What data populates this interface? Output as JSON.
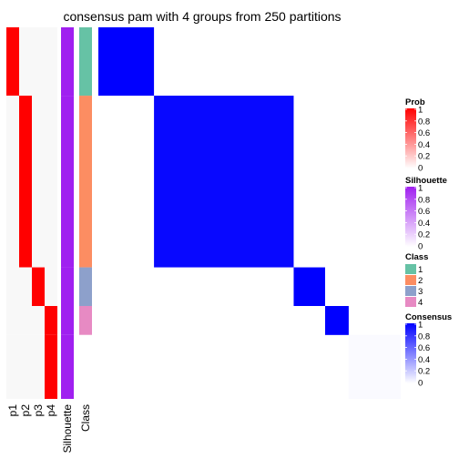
{
  "chart_data": {
    "type": "heatmap",
    "title": "consensus pam with 4 groups from 250 partitions",
    "columns": [
      "p1",
      "p2",
      "p3",
      "p4",
      "Silhouette",
      "Class"
    ],
    "groups": [
      {
        "class": "1",
        "fraction": 0.184,
        "prob": [
          1,
          0,
          0,
          0
        ],
        "silhouette": 1
      },
      {
        "class": "2",
        "fraction": 0.462,
        "prob": [
          0,
          1,
          0,
          0
        ],
        "silhouette": 1
      },
      {
        "class": "3",
        "fraction": 0.104,
        "prob": [
          0,
          0,
          1,
          0
        ],
        "silhouette": 1
      },
      {
        "class": "4",
        "fraction": 0.078,
        "prob": [
          0,
          0,
          0,
          1
        ],
        "silhouette": 1
      },
      {
        "class": "",
        "fraction": 0.172,
        "prob": [
          0,
          0,
          0,
          1
        ],
        "silhouette": 1
      }
    ],
    "consensus_blocks": [
      {
        "rows": [
          0,
          0
        ],
        "value": 1
      },
      {
        "rows": [
          1,
          1
        ],
        "value": 0.97
      },
      {
        "rows": [
          2,
          2
        ],
        "value": 1
      },
      {
        "rows": [
          3,
          3
        ],
        "value": 1
      },
      {
        "rows": [
          4,
          4
        ],
        "value": 0.02
      }
    ],
    "legends": [
      {
        "title": "Prob",
        "type": "continuous",
        "ticks": [
          "1",
          "0.8",
          "0.6",
          "0.4",
          "0.2",
          "0"
        ],
        "color_high": "#FF0000",
        "color_low": "#FFFFFF"
      },
      {
        "title": "Silhouette",
        "type": "continuous",
        "ticks": [
          "1",
          "0.8",
          "0.6",
          "0.4",
          "0.2",
          "0"
        ],
        "color_high": "#A020F0",
        "color_low": "#FFFFFF"
      },
      {
        "title": "Class",
        "type": "discrete",
        "items": [
          {
            "label": "1",
            "color": "#66C2A5"
          },
          {
            "label": "2",
            "color": "#FC8D62"
          },
          {
            "label": "3",
            "color": "#8DA0CB"
          },
          {
            "label": "4",
            "color": "#E78AC3"
          }
        ]
      },
      {
        "title": "Consensus",
        "type": "continuous",
        "ticks": [
          "1",
          "0.8",
          "0.6",
          "0.4",
          "0.2",
          "0"
        ],
        "color_high": "#0000FF",
        "color_low": "#FFFFFF"
      }
    ],
    "colors": {
      "prob": "#FF0000",
      "silhouette": "#A020F0",
      "consensus": "#0000FF"
    }
  }
}
